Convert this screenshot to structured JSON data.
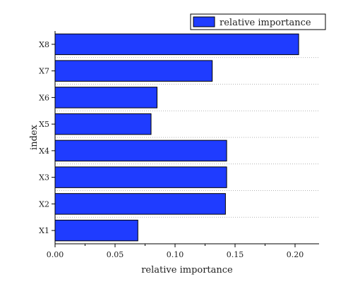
{
  "chart_data": {
    "type": "bar",
    "orientation": "horizontal",
    "categories": [
      "X1",
      "X2",
      "X3",
      "X4",
      "X5",
      "X6",
      "X7",
      "X8"
    ],
    "series": [
      {
        "name": "relative importance",
        "values": [
          0.069,
          0.142,
          0.143,
          0.143,
          0.08,
          0.085,
          0.131,
          0.203
        ]
      }
    ],
    "xlabel": "relative importance",
    "ylabel": "index",
    "xlim": [
      0,
      0.22
    ],
    "x_ticks": [
      "0.00",
      "0.05",
      "0.10",
      "0.15",
      "0.20"
    ],
    "grid": "dotted horizontal lines between categories",
    "legend_position": "top-right",
    "colors": {
      "bar_fill": "#1f3cff",
      "bar_edge": "#000000"
    }
  }
}
